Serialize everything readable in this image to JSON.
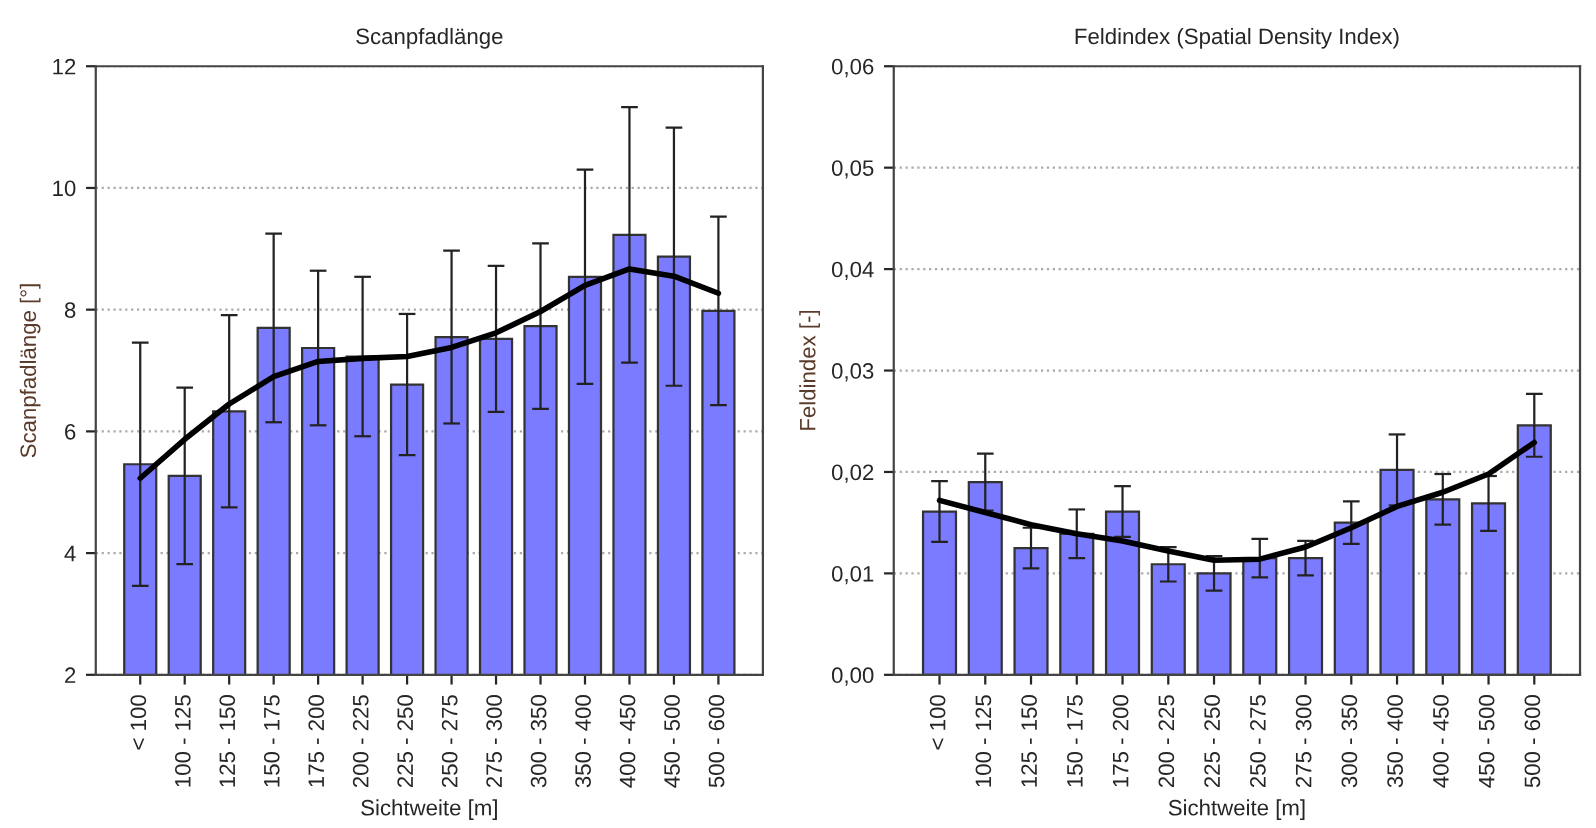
{
  "chart_data": [
    {
      "type": "bar",
      "title": "Scanpfadlänge",
      "xlabel": "Sichtweite [m]",
      "ylabel": "Scanpfadlänge [°]",
      "categories": [
        "< 100",
        "100 - 125",
        "125 - 150",
        "150 - 175",
        "175 - 200",
        "200 - 225",
        "225 - 250",
        "250 - 275",
        "275 - 300",
        "300 - 350",
        "350 - 400",
        "400 - 450",
        "450 - 500",
        "500 - 600"
      ],
      "ylim": [
        2,
        12
      ],
      "yticks": [
        2,
        4,
        6,
        8,
        10,
        12
      ],
      "grid": "y",
      "series": [
        {
          "color": "#7b7bff",
          "values": [
            5.46,
            5.27,
            6.33,
            7.7,
            7.37,
            7.23,
            6.77,
            7.55,
            7.52,
            7.73,
            8.54,
            9.23,
            8.87,
            7.98
          ],
          "errors": [
            2.0,
            1.45,
            1.58,
            1.55,
            1.27,
            1.31,
            1.16,
            1.42,
            1.2,
            1.36,
            1.76,
            2.1,
            2.12,
            1.55
          ]
        },
        {
          "type": "line",
          "color": "#000000",
          "values": [
            5.23,
            5.87,
            6.45,
            6.9,
            7.15,
            7.2,
            7.23,
            7.38,
            7.62,
            7.97,
            8.4,
            8.67,
            8.55,
            8.27
          ]
        }
      ]
    },
    {
      "type": "bar",
      "title": "Feldindex (Spatial Density Index)",
      "xlabel": "Sichtweite [m]",
      "ylabel": "Feldindex [-]",
      "categories": [
        "< 100",
        "100 - 125",
        "125 - 150",
        "150 - 175",
        "175 - 200",
        "200 - 225",
        "225 - 250",
        "250 - 275",
        "275 - 300",
        "300 - 350",
        "350 - 400",
        "400 - 450",
        "450 - 500",
        "500 - 600"
      ],
      "ylim": [
        0,
        0.06
      ],
      "yticks": [
        {
          "value": 0,
          "label": "0,00"
        },
        {
          "value": 0.01,
          "label": "0,01"
        },
        {
          "value": 0.02,
          "label": "0,02"
        },
        {
          "value": 0.03,
          "label": "0,03"
        },
        {
          "value": 0.04,
          "label": "0,04"
        },
        {
          "value": 0.05,
          "label": "0,05"
        },
        {
          "value": 0.06,
          "label": "0,06"
        }
      ],
      "grid": "y",
      "series": [
        {
          "color": "#7b7bff",
          "values": [
            0.0161,
            0.019,
            0.0125,
            0.0139,
            0.0161,
            0.0109,
            0.01,
            0.0115,
            0.0115,
            0.015,
            0.0202,
            0.0173,
            0.0169,
            0.0246
          ],
          "errors": [
            0.003,
            0.0028,
            0.002,
            0.0024,
            0.0025,
            0.0017,
            0.0017,
            0.0019,
            0.0017,
            0.0021,
            0.0035,
            0.0025,
            0.0027,
            0.0031
          ]
        },
        {
          "type": "line",
          "color": "#000000",
          "values": [
            0.0172,
            0.016,
            0.0148,
            0.0139,
            0.0132,
            0.0122,
            0.0113,
            0.0114,
            0.0126,
            0.0145,
            0.0166,
            0.018,
            0.0198,
            0.0229
          ]
        }
      ]
    }
  ]
}
